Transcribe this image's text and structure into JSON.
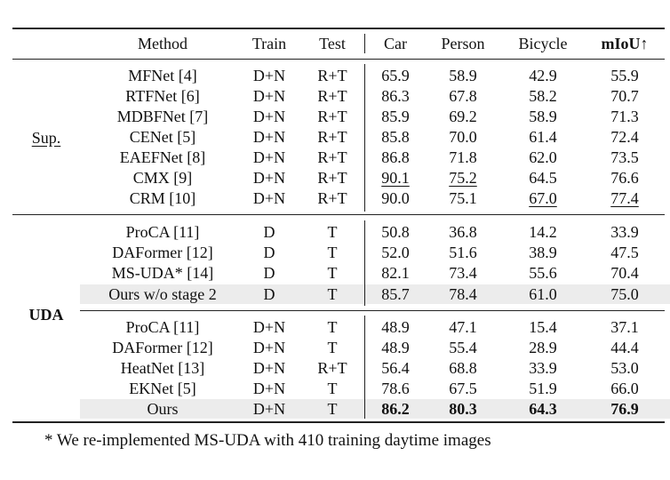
{
  "header": {
    "method": "Method",
    "train": "Train",
    "test": "Test",
    "car": "Car",
    "person": "Person",
    "bicycle": "Bicycle",
    "miou": "mIoU↑"
  },
  "groups": {
    "sup": "Sup.",
    "uda": "UDA"
  },
  "sup_rows": [
    {
      "method": "MFNet [4]",
      "train": "D+N",
      "test": "R+T",
      "car": "65.9",
      "person": "58.9",
      "bicycle": "42.9",
      "miou": "55.9"
    },
    {
      "method": "RTFNet [6]",
      "train": "D+N",
      "test": "R+T",
      "car": "86.3",
      "person": "67.8",
      "bicycle": "58.2",
      "miou": "70.7"
    },
    {
      "method": "MDBFNet [7]",
      "train": "D+N",
      "test": "R+T",
      "car": "85.9",
      "person": "69.2",
      "bicycle": "58.9",
      "miou": "71.3"
    },
    {
      "method": "CENet [5]",
      "train": "D+N",
      "test": "R+T",
      "car": "85.8",
      "person": "70.0",
      "bicycle": "61.4",
      "miou": "72.4"
    },
    {
      "method": "EAEFNet [8]",
      "train": "D+N",
      "test": "R+T",
      "car": "86.8",
      "person": "71.8",
      "bicycle": "62.0",
      "miou": "73.5"
    },
    {
      "method": "CMX [9]",
      "train": "D+N",
      "test": "R+T",
      "car": "90.1",
      "person": "75.2",
      "bicycle": "64.5",
      "miou": "76.6"
    },
    {
      "method": "CRM [10]",
      "train": "D+N",
      "test": "R+T",
      "car": "90.0",
      "person": "75.1",
      "bicycle": "67.0",
      "miou": "77.4"
    }
  ],
  "uda_rows_a": [
    {
      "method": "ProCA [11]",
      "train": "D",
      "test": "T",
      "car": "50.8",
      "person": "36.8",
      "bicycle": "14.2",
      "miou": "33.9"
    },
    {
      "method": "DAFormer [12]",
      "train": "D",
      "test": "T",
      "car": "52.0",
      "person": "51.6",
      "bicycle": "38.9",
      "miou": "47.5"
    },
    {
      "method": "MS-UDA* [14]",
      "train": "D",
      "test": "T",
      "car": "82.1",
      "person": "73.4",
      "bicycle": "55.6",
      "miou": "70.4"
    },
    {
      "method": "Ours w/o stage 2",
      "train": "D",
      "test": "T",
      "car": "85.7",
      "person": "78.4",
      "bicycle": "61.0",
      "miou": "75.0"
    }
  ],
  "uda_rows_b": [
    {
      "method": "ProCA [11]",
      "train": "D+N",
      "test": "T",
      "car": "48.9",
      "person": "47.1",
      "bicycle": "15.4",
      "miou": "37.1"
    },
    {
      "method": "DAFormer [12]",
      "train": "D+N",
      "test": "T",
      "car": "48.9",
      "person": "55.4",
      "bicycle": "28.9",
      "miou": "44.4"
    },
    {
      "method": "HeatNet [13]",
      "train": "D+N",
      "test": "R+T",
      "car": "56.4",
      "person": "68.8",
      "bicycle": "33.9",
      "miou": "53.0"
    },
    {
      "method": "EKNet [5]",
      "train": "D+N",
      "test": "T",
      "car": "78.6",
      "person": "67.5",
      "bicycle": "51.9",
      "miou": "66.0"
    },
    {
      "method": "Ours",
      "train": "D+N",
      "test": "T",
      "car": "86.2",
      "person": "80.3",
      "bicycle": "64.3",
      "miou": "76.9"
    }
  ],
  "footnote": "* We re-implemented MS-UDA with 410 training daytime images"
}
